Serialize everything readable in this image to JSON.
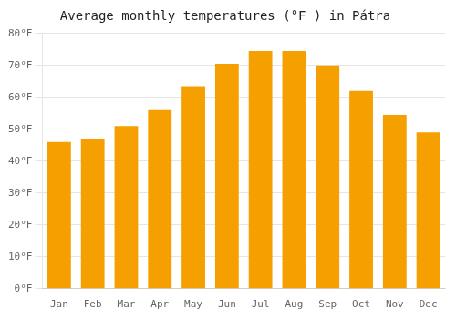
{
  "chart_data": {
    "type": "bar",
    "title": "Average monthly temperatures (°F ) in Pátra",
    "categories": [
      "Jan",
      "Feb",
      "Mar",
      "Apr",
      "May",
      "Jun",
      "Jul",
      "Aug",
      "Sep",
      "Oct",
      "Nov",
      "Dec"
    ],
    "values": [
      46,
      47,
      51,
      56,
      63.5,
      70.5,
      74.5,
      74.5,
      70,
      62,
      54.5,
      49
    ],
    "color": "#F5A000",
    "ylim": [
      0,
      80
    ],
    "yticks": [
      {
        "value": 0,
        "label": "0°F"
      },
      {
        "value": 10,
        "label": "10°F"
      },
      {
        "value": 20,
        "label": "20°F"
      },
      {
        "value": 30,
        "label": "30°F"
      },
      {
        "value": 40,
        "label": "40°F"
      },
      {
        "value": 50,
        "label": "50°F"
      },
      {
        "value": 60,
        "label": "60°F"
      },
      {
        "value": 70,
        "label": "70°F"
      },
      {
        "value": 80,
        "label": "80°F"
      }
    ],
    "grid": true
  }
}
